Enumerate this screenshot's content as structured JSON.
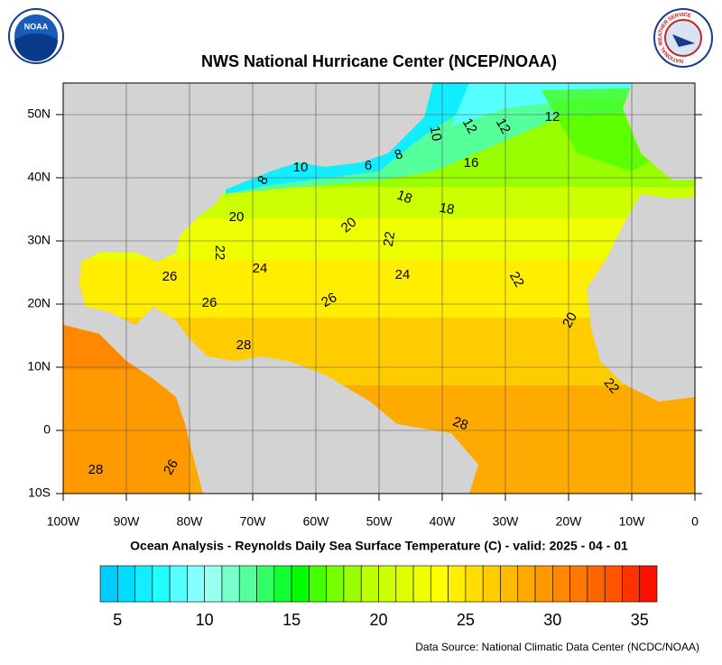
{
  "header": {
    "title": "NWS National Hurricane Center (NCEP/NOAA)",
    "noaa_logo": "NOAA",
    "nws_logo": "NATIONAL WEATHER SERVICE"
  },
  "map": {
    "xlim": [
      -100,
      0
    ],
    "ylim": [
      -10,
      55
    ],
    "xticks": [
      {
        "value": -100,
        "label": "100W"
      },
      {
        "value": -90,
        "label": "90W"
      },
      {
        "value": -80,
        "label": "80W"
      },
      {
        "value": -70,
        "label": "70W"
      },
      {
        "value": -60,
        "label": "60W"
      },
      {
        "value": -50,
        "label": "50W"
      },
      {
        "value": -40,
        "label": "40W"
      },
      {
        "value": -30,
        "label": "30W"
      },
      {
        "value": -20,
        "label": "20W"
      },
      {
        "value": -10,
        "label": "10W"
      },
      0
    ],
    "yticks": [
      {
        "value": 50,
        "label": "50N"
      },
      {
        "value": 40,
        "label": "40N"
      },
      {
        "value": 30,
        "label": "30N"
      },
      {
        "value": 20,
        "label": "20N"
      },
      {
        "value": 10,
        "label": "10N"
      },
      0,
      {
        "value": -10,
        "label": "10S"
      }
    ],
    "grid": true,
    "contour_labels": [
      "28",
      "26",
      "26",
      "24",
      "24",
      "22",
      "22",
      "22",
      "20",
      "20",
      "20",
      "18",
      "18",
      "16",
      "12",
      "12",
      "12",
      "10",
      "10",
      "8",
      "8",
      "6",
      "28",
      "28",
      "26",
      "26",
      "22"
    ]
  },
  "caption": "Ocean Analysis - Reynolds Daily Sea Surface Temperature (C) - valid: 2025 - 04 - 01",
  "colorbar": {
    "lim": [
      4,
      36
    ],
    "ticks": [
      5,
      10,
      15,
      20,
      25,
      30,
      35
    ],
    "colors": [
      "#00ccff",
      "#00ddff",
      "#11eeff",
      "#22ffff",
      "#55ffff",
      "#88ffff",
      "#99ffee",
      "#77ffcc",
      "#55ff99",
      "#33ff66",
      "#11ff33",
      "#00ff00",
      "#44ff00",
      "#77ff00",
      "#99ff00",
      "#bbff00",
      "#ccff00",
      "#ddff00",
      "#eeff00",
      "#ffff00",
      "#ffee00",
      "#ffdd00",
      "#ffcc00",
      "#ffbb00",
      "#ffaa00",
      "#ff9900",
      "#ff8800",
      "#ff7700",
      "#ff6600",
      "#ff5500",
      "#ff3300",
      "#ff1100"
    ]
  },
  "footer": "Data Source: National Climatic Data Center (NCDC/NOAA)"
}
